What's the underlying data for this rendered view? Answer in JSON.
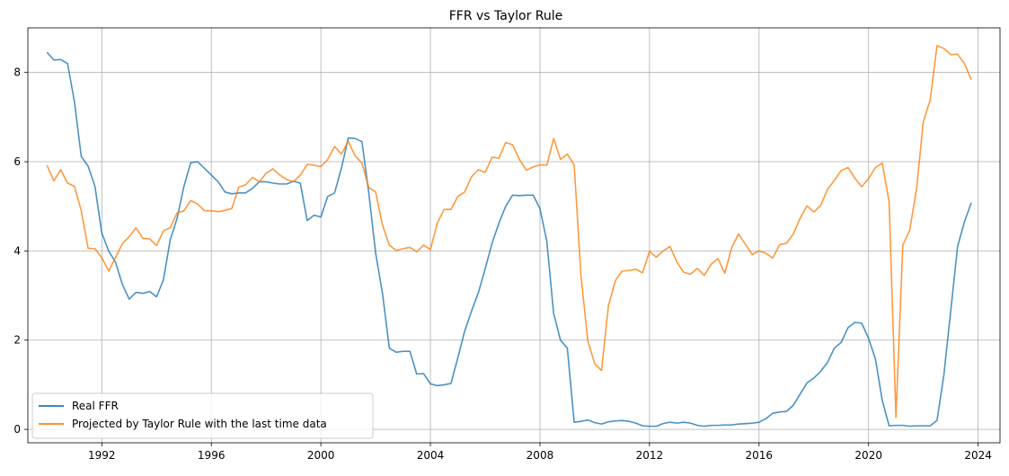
{
  "chart_data": {
    "type": "line",
    "title": "FFR vs Taylor Rule",
    "xlabel": "",
    "ylabel": "",
    "xlim": [
      1989.3,
      2024.8
    ],
    "ylim": [
      -0.3,
      9.0
    ],
    "x_ticks": [
      1992,
      1996,
      2000,
      2004,
      2008,
      2012,
      2016,
      2020,
      2024
    ],
    "x_tick_labels": [
      "1992",
      "1996",
      "2000",
      "2004",
      "2008",
      "2012",
      "2016",
      "2020",
      "2024"
    ],
    "y_ticks": [
      0,
      2,
      4,
      6,
      8
    ],
    "y_tick_labels": [
      "0",
      "2",
      "4",
      "6",
      "8"
    ],
    "grid": true,
    "legend_position": "lower-left",
    "series": [
      {
        "name": "Real FFR",
        "color": "#1f77b4",
        "points": [
          [
            1990.0,
            8.45
          ],
          [
            1990.25,
            8.28
          ],
          [
            1990.5,
            8.29
          ],
          [
            1990.75,
            8.2
          ],
          [
            1991.0,
            7.35
          ],
          [
            1991.25,
            6.12
          ],
          [
            1991.5,
            5.9
          ],
          [
            1991.75,
            5.45
          ],
          [
            1992.0,
            4.4
          ],
          [
            1992.25,
            4.0
          ],
          [
            1992.5,
            3.75
          ],
          [
            1992.75,
            3.25
          ],
          [
            1993.0,
            2.92
          ],
          [
            1993.25,
            3.07
          ],
          [
            1993.5,
            3.05
          ],
          [
            1993.75,
            3.09
          ],
          [
            1994.0,
            2.97
          ],
          [
            1994.25,
            3.35
          ],
          [
            1994.5,
            4.25
          ],
          [
            1994.75,
            4.73
          ],
          [
            1995.0,
            5.45
          ],
          [
            1995.25,
            5.98
          ],
          [
            1995.5,
            6.0
          ],
          [
            1995.75,
            5.85
          ],
          [
            1996.0,
            5.7
          ],
          [
            1996.25,
            5.55
          ],
          [
            1996.5,
            5.32
          ],
          [
            1996.75,
            5.28
          ],
          [
            1997.0,
            5.3
          ],
          [
            1997.25,
            5.3
          ],
          [
            1997.5,
            5.4
          ],
          [
            1997.75,
            5.55
          ],
          [
            1998.0,
            5.55
          ],
          [
            1998.25,
            5.52
          ],
          [
            1998.5,
            5.5
          ],
          [
            1998.75,
            5.5
          ],
          [
            1999.0,
            5.56
          ],
          [
            1999.25,
            5.52
          ],
          [
            1999.5,
            4.68
          ],
          [
            1999.75,
            4.8
          ],
          [
            2000.0,
            4.76
          ],
          [
            2000.25,
            5.22
          ],
          [
            2000.5,
            5.3
          ],
          [
            2000.75,
            5.85
          ],
          [
            2001.0,
            6.53
          ],
          [
            2001.25,
            6.52
          ],
          [
            2001.5,
            6.45
          ],
          [
            2001.75,
            5.3
          ],
          [
            2002.0,
            3.95
          ],
          [
            2002.25,
            3.05
          ],
          [
            2002.5,
            1.82
          ],
          [
            2002.75,
            1.73
          ],
          [
            2003.0,
            1.75
          ],
          [
            2003.25,
            1.75
          ],
          [
            2003.5,
            1.24
          ],
          [
            2003.75,
            1.25
          ],
          [
            2004.0,
            1.02
          ],
          [
            2004.25,
            0.98
          ],
          [
            2004.5,
            1.0
          ],
          [
            2004.75,
            1.03
          ],
          [
            2005.0,
            1.6
          ],
          [
            2005.25,
            2.2
          ],
          [
            2005.5,
            2.65
          ],
          [
            2005.75,
            3.06
          ],
          [
            2006.0,
            3.6
          ],
          [
            2006.25,
            4.17
          ],
          [
            2006.5,
            4.62
          ],
          [
            2006.75,
            5.0
          ],
          [
            2007.0,
            5.25
          ],
          [
            2007.25,
            5.24
          ],
          [
            2007.5,
            5.25
          ],
          [
            2007.75,
            5.25
          ],
          [
            2008.0,
            4.95
          ],
          [
            2008.25,
            4.22
          ],
          [
            2008.5,
            2.6
          ],
          [
            2008.75,
            2.0
          ],
          [
            2009.0,
            1.82
          ],
          [
            2009.25,
            0.16
          ],
          [
            2009.5,
            0.18
          ],
          [
            2009.75,
            0.21
          ],
          [
            2010.0,
            0.15
          ],
          [
            2010.25,
            0.12
          ],
          [
            2010.5,
            0.17
          ],
          [
            2010.75,
            0.19
          ],
          [
            2011.0,
            0.2
          ],
          [
            2011.25,
            0.18
          ],
          [
            2011.5,
            0.14
          ],
          [
            2011.75,
            0.08
          ],
          [
            2012.0,
            0.07
          ],
          [
            2012.25,
            0.07
          ],
          [
            2012.5,
            0.13
          ],
          [
            2012.75,
            0.16
          ],
          [
            2013.0,
            0.14
          ],
          [
            2013.25,
            0.16
          ],
          [
            2013.5,
            0.14
          ],
          [
            2013.75,
            0.09
          ],
          [
            2014.0,
            0.07
          ],
          [
            2014.25,
            0.09
          ],
          [
            2014.5,
            0.09
          ],
          [
            2014.75,
            0.1
          ],
          [
            2015.0,
            0.1
          ],
          [
            2015.25,
            0.12
          ],
          [
            2015.5,
            0.13
          ],
          [
            2015.75,
            0.14
          ],
          [
            2016.0,
            0.16
          ],
          [
            2016.25,
            0.24
          ],
          [
            2016.5,
            0.36
          ],
          [
            2016.75,
            0.39
          ],
          [
            2017.0,
            0.4
          ],
          [
            2017.25,
            0.54
          ],
          [
            2017.5,
            0.79
          ],
          [
            2017.75,
            1.04
          ],
          [
            2018.0,
            1.15
          ],
          [
            2018.25,
            1.3
          ],
          [
            2018.5,
            1.5
          ],
          [
            2018.75,
            1.82
          ],
          [
            2019.0,
            1.95
          ],
          [
            2019.25,
            2.28
          ],
          [
            2019.5,
            2.4
          ],
          [
            2019.75,
            2.38
          ],
          [
            2020.0,
            2.04
          ],
          [
            2020.25,
            1.58
          ],
          [
            2020.5,
            0.65
          ],
          [
            2020.75,
            0.08
          ],
          [
            2021.0,
            0.09
          ],
          [
            2021.25,
            0.09
          ],
          [
            2021.5,
            0.07
          ],
          [
            2021.75,
            0.08
          ],
          [
            2022.0,
            0.08
          ],
          [
            2022.25,
            0.08
          ],
          [
            2022.5,
            0.2
          ],
          [
            2022.75,
            1.22
          ],
          [
            2023.0,
            2.65
          ],
          [
            2023.25,
            4.1
          ],
          [
            2023.5,
            4.65
          ],
          [
            2023.75,
            5.08
          ]
        ]
      },
      {
        "name": "Projected by Taylor Rule with the last time data",
        "color": "#ff7f0e",
        "points": [
          [
            1990.0,
            5.92
          ],
          [
            1990.25,
            5.57
          ],
          [
            1990.5,
            5.82
          ],
          [
            1990.75,
            5.52
          ],
          [
            1991.0,
            5.45
          ],
          [
            1991.25,
            4.9
          ],
          [
            1991.5,
            4.06
          ],
          [
            1991.75,
            4.05
          ],
          [
            1992.0,
            3.85
          ],
          [
            1992.25,
            3.55
          ],
          [
            1992.5,
            3.85
          ],
          [
            1992.75,
            4.16
          ],
          [
            1993.0,
            4.32
          ],
          [
            1993.25,
            4.52
          ],
          [
            1993.5,
            4.28
          ],
          [
            1993.75,
            4.27
          ],
          [
            1994.0,
            4.12
          ],
          [
            1994.25,
            4.45
          ],
          [
            1994.5,
            4.52
          ],
          [
            1994.75,
            4.85
          ],
          [
            1995.0,
            4.9
          ],
          [
            1995.25,
            5.13
          ],
          [
            1995.5,
            5.05
          ],
          [
            1995.75,
            4.9
          ],
          [
            1996.0,
            4.9
          ],
          [
            1996.25,
            4.88
          ],
          [
            1996.5,
            4.91
          ],
          [
            1996.75,
            4.95
          ],
          [
            1997.0,
            5.43
          ],
          [
            1997.25,
            5.48
          ],
          [
            1997.5,
            5.65
          ],
          [
            1997.75,
            5.55
          ],
          [
            1998.0,
            5.74
          ],
          [
            1998.25,
            5.84
          ],
          [
            1998.5,
            5.7
          ],
          [
            1998.75,
            5.6
          ],
          [
            1999.0,
            5.55
          ],
          [
            1999.25,
            5.7
          ],
          [
            1999.5,
            5.94
          ],
          [
            1999.75,
            5.92
          ],
          [
            2000.0,
            5.89
          ],
          [
            2000.25,
            6.05
          ],
          [
            2000.5,
            6.34
          ],
          [
            2000.75,
            6.17
          ],
          [
            2001.0,
            6.46
          ],
          [
            2001.25,
            6.13
          ],
          [
            2001.5,
            5.97
          ],
          [
            2001.75,
            5.42
          ],
          [
            2002.0,
            5.32
          ],
          [
            2002.25,
            4.58
          ],
          [
            2002.5,
            4.13
          ],
          [
            2002.75,
            4.01
          ],
          [
            2003.0,
            4.05
          ],
          [
            2003.25,
            4.08
          ],
          [
            2003.5,
            3.98
          ],
          [
            2003.75,
            4.13
          ],
          [
            2004.0,
            4.03
          ],
          [
            2004.25,
            4.62
          ],
          [
            2004.5,
            4.93
          ],
          [
            2004.75,
            4.93
          ],
          [
            2005.0,
            5.22
          ],
          [
            2005.25,
            5.32
          ],
          [
            2005.5,
            5.66
          ],
          [
            2005.75,
            5.82
          ],
          [
            2006.0,
            5.76
          ],
          [
            2006.25,
            6.1
          ],
          [
            2006.5,
            6.08
          ],
          [
            2006.75,
            6.43
          ],
          [
            2007.0,
            6.38
          ],
          [
            2007.25,
            6.05
          ],
          [
            2007.5,
            5.81
          ],
          [
            2007.75,
            5.88
          ],
          [
            2008.0,
            5.93
          ],
          [
            2008.25,
            5.92
          ],
          [
            2008.5,
            6.52
          ],
          [
            2008.75,
            6.05
          ],
          [
            2009.0,
            6.17
          ],
          [
            2009.25,
            5.93
          ],
          [
            2009.5,
            3.43
          ],
          [
            2009.75,
            1.98
          ],
          [
            2010.0,
            1.47
          ],
          [
            2010.25,
            1.32
          ],
          [
            2010.5,
            2.77
          ],
          [
            2010.75,
            3.33
          ],
          [
            2011.0,
            3.55
          ],
          [
            2011.25,
            3.56
          ],
          [
            2011.5,
            3.59
          ],
          [
            2011.75,
            3.51
          ],
          [
            2012.0,
            3.99
          ],
          [
            2012.25,
            3.86
          ],
          [
            2012.5,
            4.0
          ],
          [
            2012.75,
            4.1
          ],
          [
            2013.0,
            3.75
          ],
          [
            2013.25,
            3.52
          ],
          [
            2013.5,
            3.48
          ],
          [
            2013.75,
            3.61
          ],
          [
            2014.0,
            3.45
          ],
          [
            2014.25,
            3.7
          ],
          [
            2014.5,
            3.83
          ],
          [
            2014.75,
            3.5
          ],
          [
            2015.0,
            4.07
          ],
          [
            2015.25,
            4.38
          ],
          [
            2015.5,
            4.15
          ],
          [
            2015.75,
            3.92
          ],
          [
            2016.0,
            4.0
          ],
          [
            2016.25,
            3.95
          ],
          [
            2016.5,
            3.84
          ],
          [
            2016.75,
            4.14
          ],
          [
            2017.0,
            4.17
          ],
          [
            2017.25,
            4.38
          ],
          [
            2017.5,
            4.73
          ],
          [
            2017.75,
            5.01
          ],
          [
            2018.0,
            4.87
          ],
          [
            2018.25,
            5.02
          ],
          [
            2018.5,
            5.38
          ],
          [
            2018.75,
            5.58
          ],
          [
            2019.0,
            5.8
          ],
          [
            2019.25,
            5.87
          ],
          [
            2019.5,
            5.63
          ],
          [
            2019.75,
            5.44
          ],
          [
            2020.0,
            5.62
          ],
          [
            2020.25,
            5.87
          ],
          [
            2020.5,
            5.97
          ],
          [
            2020.75,
            5.1
          ],
          [
            2021.0,
            0.27
          ],
          [
            2021.25,
            4.13
          ],
          [
            2021.5,
            4.46
          ],
          [
            2021.75,
            5.38
          ],
          [
            2022.0,
            6.9
          ],
          [
            2022.25,
            7.38
          ],
          [
            2022.5,
            8.6
          ],
          [
            2022.75,
            8.54
          ],
          [
            2023.0,
            8.4
          ],
          [
            2023.25,
            8.41
          ],
          [
            2023.5,
            8.2
          ],
          [
            2023.75,
            7.84
          ]
        ]
      }
    ]
  }
}
